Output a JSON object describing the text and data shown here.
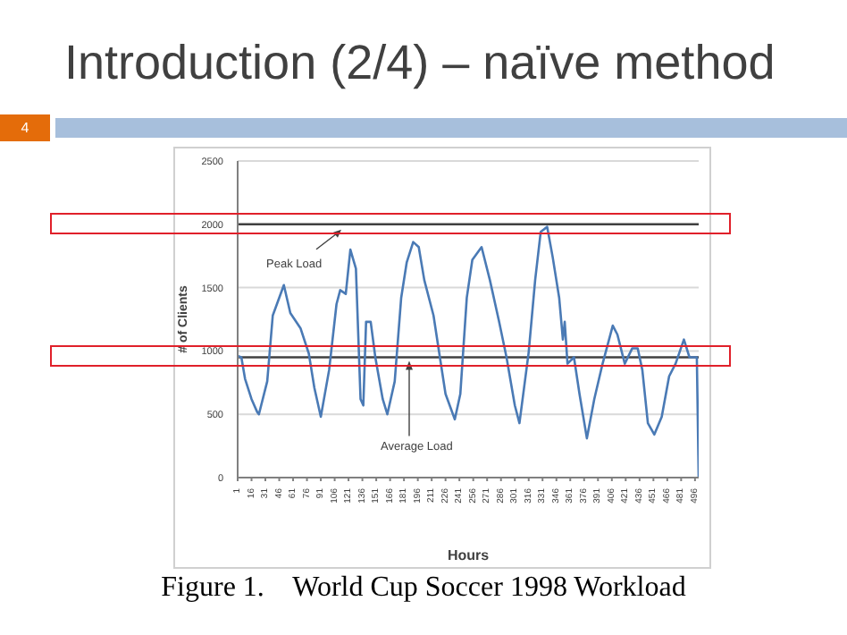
{
  "chart_data": {
    "type": "line",
    "title": "Introduction (2/4) – naïve method",
    "xlabel": "Hours",
    "ylabel": "# of Clients",
    "annotations": [
      "4",
      "Figure 1.    World Cup Soccer 1998 Workload"
    ],
    "x": [
      1,
      5,
      9,
      16,
      22,
      24,
      33,
      39,
      45,
      51,
      58,
      69,
      78,
      84,
      91,
      100,
      108,
      112,
      118,
      123,
      129,
      134,
      137,
      140,
      145,
      150,
      158,
      163,
      171,
      178,
      184,
      191,
      197,
      203,
      213,
      218,
      226,
      236,
      242,
      249,
      255,
      265,
      274,
      284,
      292,
      301,
      306,
      316,
      323,
      329,
      336,
      342,
      349,
      353,
      355,
      358,
      365,
      371,
      379,
      387,
      396,
      407,
      412,
      420,
      428,
      434,
      439,
      445,
      452,
      460,
      468,
      475,
      484,
      490,
      498,
      500
    ],
    "series": [
      {
        "color": "#4a7ab5",
        "values": [
          960,
          950,
          780,
          620,
          520,
          500,
          760,
          1280,
          1400,
          1520,
          1300,
          1180,
          980,
          710,
          480,
          850,
          1370,
          1480,
          1450,
          1800,
          1650,
          620,
          570,
          1230,
          1230,
          950,
          620,
          500,
          760,
          1420,
          1700,
          1860,
          1820,
          1560,
          1280,
          1040,
          660,
          460,
          660,
          1420,
          1720,
          1820,
          1560,
          1230,
          950,
          570,
          430,
          990,
          1560,
          1940,
          1980,
          1740,
          1420,
          1090,
          1230,
          900,
          950,
          660,
          310,
          620,
          900,
          1200,
          1130,
          900,
          1020,
          1020,
          850,
          430,
          340,
          480,
          800,
          900,
          1090,
          950,
          950,
          0
        ]
      }
    ],
    "xlim": [
      1,
      500
    ],
    "xticks": [
      1,
      16,
      31,
      46,
      61,
      76,
      91,
      106,
      121,
      136,
      151,
      166,
      181,
      196,
      211,
      226,
      241,
      256,
      271,
      286,
      301,
      316,
      331,
      346,
      361,
      376,
      391,
      406,
      421,
      436,
      451,
      466,
      481,
      496
    ],
    "ylim": [
      0,
      2500
    ],
    "yticks": [
      0,
      500,
      1000,
      1500,
      2000,
      2500
    ],
    "grid": "y",
    "marker": "none",
    "line_style": "solid",
    "ref_lines": [
      {
        "axis": "y",
        "value": 2000,
        "label": "Peak Load",
        "color": "#404040"
      },
      {
        "axis": "y",
        "value": 950,
        "label": "Average Load",
        "color": "#404040"
      }
    ]
  }
}
